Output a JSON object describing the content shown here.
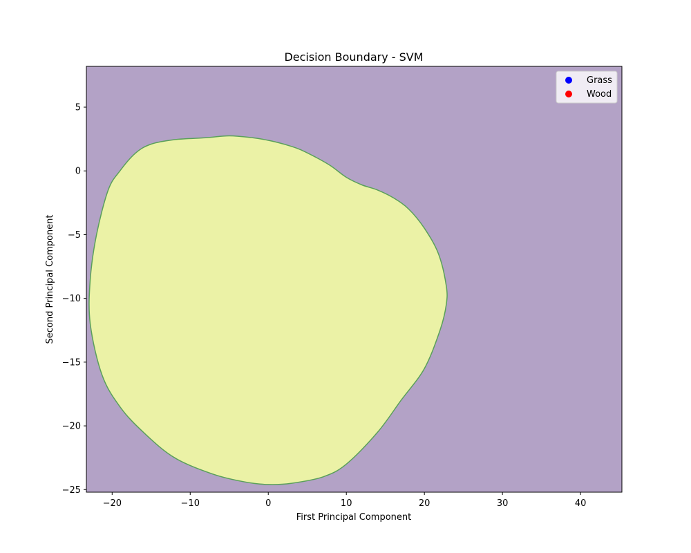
{
  "chart_data": {
    "type": "decision-boundary",
    "title": "Decision Boundary - SVM",
    "xlabel": "First Principal Component",
    "ylabel": "Second Principal Component",
    "xlim": [
      -23.3,
      45.3
    ],
    "ylim": [
      -25.2,
      8.2
    ],
    "xticks": [
      -20,
      -10,
      0,
      10,
      20,
      30,
      40
    ],
    "yticks": [
      -25,
      -20,
      -15,
      -10,
      -5,
      0,
      5
    ],
    "grid": false,
    "legend_position": "top-right",
    "regions": {
      "outside_color": "#b3a2c6",
      "inside_color": "#ebf2a6",
      "edge_color": "#5aa05a",
      "inside_boundary": [
        [
          -5,
          2.75
        ],
        [
          -2,
          2.6
        ],
        [
          0,
          2.4
        ],
        [
          2,
          2.1
        ],
        [
          4,
          1.7
        ],
        [
          6,
          1.1
        ],
        [
          8,
          0.4
        ],
        [
          10,
          -0.5
        ],
        [
          12,
          -1.1
        ],
        [
          14,
          -1.5
        ],
        [
          16,
          -2.1
        ],
        [
          18,
          -3.0
        ],
        [
          20,
          -4.5
        ],
        [
          21.8,
          -6.5
        ],
        [
          22.8,
          -9.0
        ],
        [
          22.8,
          -10.5
        ],
        [
          22,
          -12.5
        ],
        [
          20,
          -15.5
        ],
        [
          17,
          -18
        ],
        [
          14,
          -20.5
        ],
        [
          10,
          -23
        ],
        [
          7,
          -24
        ],
        [
          3,
          -24.5
        ],
        [
          0,
          -24.6
        ],
        [
          -3,
          -24.4
        ],
        [
          -7,
          -23.8
        ],
        [
          -12,
          -22.5
        ],
        [
          -16,
          -20.5
        ],
        [
          -19,
          -18.5
        ],
        [
          -21.3,
          -16
        ],
        [
          -22.8,
          -12
        ],
        [
          -22.8,
          -8.5
        ],
        [
          -22,
          -5
        ],
        [
          -20.5,
          -1.5
        ],
        [
          -19,
          0
        ],
        [
          -17,
          1.4
        ],
        [
          -15,
          2.1
        ],
        [
          -12,
          2.45
        ],
        [
          -8,
          2.6
        ]
      ]
    },
    "series": [
      {
        "name": "Grass",
        "color": "#0000ff",
        "points": []
      },
      {
        "name": "Wood",
        "color": "#ff0000",
        "points": []
      }
    ]
  }
}
